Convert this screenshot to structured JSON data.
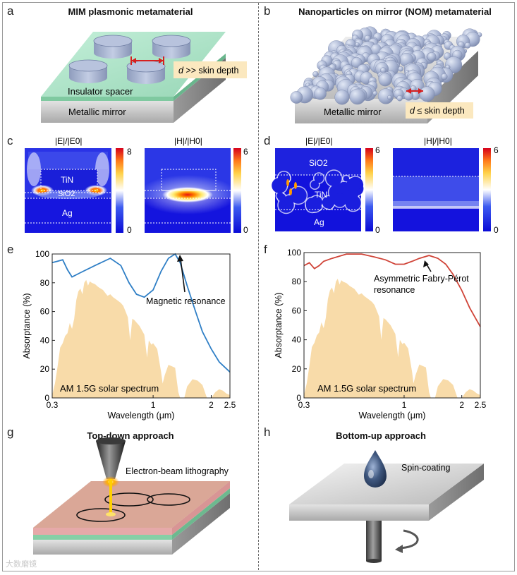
{
  "panels": {
    "a": {
      "letter": "a",
      "title": "MIM plasmonic metamaterial",
      "spacer_label": "Insulator spacer",
      "mirror_label": "Metallic mirror",
      "skin_note_italic": "d",
      "skin_note_rest": " >> skin depth"
    },
    "b": {
      "letter": "b",
      "title": "Nanoparticles on mirror (NOM) metamaterial",
      "mirror_label": "Metallic mirror",
      "skin_note_italic": "d",
      "skin_note_rest": " ≤ skin depth"
    },
    "c": {
      "letter": "c",
      "map_e_title": "|E|/|E0|",
      "map_h_title": "|H|/|H0|",
      "layer_tin": "TiN",
      "layer_sio2": "SiO2",
      "layer_ag": "Ag",
      "cbar_e_max": "8",
      "cbar_e_min": "0",
      "cbar_h_max": "6",
      "cbar_h_min": "0"
    },
    "d": {
      "letter": "d",
      "map_e_title": "|E|/|E0|",
      "map_h_title": "|H|/|H0|",
      "layer_sio2": "SiO2",
      "layer_tin": "TiN",
      "layer_ag": "Ag",
      "cbar_e_max": "6",
      "cbar_e_min": "0",
      "cbar_h_max": "6",
      "cbar_h_min": "0"
    },
    "e": {
      "letter": "e",
      "annotation": "Magnetic resonance",
      "spectrum_label": "AM 1.5G solar spectrum"
    },
    "f": {
      "letter": "f",
      "annotation_line1": "Asymmetric Fabry-Pérot",
      "annotation_line2": "resonance",
      "spectrum_label": "AM 1.5G solar spectrum"
    },
    "g": {
      "letter": "g",
      "title": "Top-down approach",
      "tool_label": "Electron-beam lithography"
    },
    "h": {
      "letter": "h",
      "title": "Bottom-up approach",
      "tool_label": "Spin-coating"
    }
  },
  "watermark": "大数磨镜",
  "colors": {
    "absorptance_e": "#2f7fc6",
    "absorptance_f": "#d04438",
    "solar": "#f8dba9",
    "spacer_green": "#9fdcbf",
    "particle": "#a9b5d3",
    "label_box": "#fbe8bf"
  },
  "chart_data": [
    {
      "type": "line",
      "panel": "e",
      "xscale": "log",
      "xlabel": "Wavelength (μm)",
      "ylabel": "Absorptance (%)",
      "xlim": [
        0.3,
        2.5
      ],
      "ylim": [
        0,
        100
      ],
      "xticks": [
        0.3,
        1,
        2,
        2.5
      ],
      "xtick_labels": [
        "0.3",
        "1",
        "2",
        "2.5"
      ],
      "yticks": [
        0,
        20,
        40,
        60,
        80,
        100
      ],
      "ytick_labels": [
        "0",
        "20",
        "40",
        "60",
        "80",
        "100"
      ],
      "series": [
        {
          "name": "Absorptance",
          "x": [
            0.3,
            0.32,
            0.34,
            0.36,
            0.38,
            0.42,
            0.5,
            0.6,
            0.68,
            0.75,
            0.82,
            0.9,
            1.0,
            1.1,
            1.2,
            1.3,
            1.38,
            1.5,
            1.65,
            1.8,
            2.0,
            2.2,
            2.5
          ],
          "values": [
            94,
            95,
            96,
            89,
            84,
            87,
            92,
            97,
            92,
            80,
            72,
            70,
            75,
            88,
            97,
            100,
            94,
            78,
            61,
            46,
            34,
            25,
            18
          ]
        },
        {
          "name": "AM 1.5G solar spectrum",
          "x": [
            0.3,
            0.31,
            0.32,
            0.33,
            0.34,
            0.35,
            0.36,
            0.37,
            0.38,
            0.39,
            0.4,
            0.41,
            0.42,
            0.43,
            0.44,
            0.45,
            0.46,
            0.47,
            0.48,
            0.5,
            0.52,
            0.55,
            0.58,
            0.6,
            0.62,
            0.65,
            0.68,
            0.7,
            0.72,
            0.74,
            0.76,
            0.78,
            0.8,
            0.85,
            0.9,
            0.93,
            0.95,
            0.98,
            1.0,
            1.05,
            1.1,
            1.12,
            1.15,
            1.2,
            1.25,
            1.3,
            1.35,
            1.38,
            1.45,
            1.5,
            1.6,
            1.7,
            1.8,
            1.9,
            2.0,
            2.1,
            2.2,
            2.3,
            2.4,
            2.5
          ],
          "values": [
            2,
            10,
            22,
            35,
            38,
            43,
            45,
            52,
            48,
            55,
            68,
            74,
            76,
            72,
            80,
            82,
            78,
            81,
            80,
            79,
            77,
            75,
            71,
            72,
            70,
            68,
            66,
            64,
            60,
            56,
            40,
            55,
            54,
            50,
            44,
            28,
            40,
            37,
            38,
            34,
            18,
            10,
            16,
            23,
            22,
            21,
            4,
            0,
            0,
            8,
            13,
            12,
            9,
            0,
            0,
            4,
            6,
            5,
            3,
            2
          ]
        }
      ]
    },
    {
      "type": "line",
      "panel": "f",
      "xscale": "log",
      "xlabel": "Wavelength (μm)",
      "ylabel": "Absorptance (%)",
      "xlim": [
        0.3,
        2.5
      ],
      "ylim": [
        0,
        100
      ],
      "xticks": [
        0.3,
        1,
        2,
        2.5
      ],
      "xtick_labels": [
        "0.3",
        "1",
        "2",
        "2.5"
      ],
      "yticks": [
        0,
        20,
        40,
        60,
        80,
        100
      ],
      "ytick_labels": [
        "0",
        "20",
        "40",
        "60",
        "80",
        "100"
      ],
      "series": [
        {
          "name": "Absorptance",
          "x": [
            0.3,
            0.32,
            0.34,
            0.36,
            0.38,
            0.42,
            0.5,
            0.6,
            0.7,
            0.8,
            0.9,
            1.0,
            1.1,
            1.2,
            1.35,
            1.5,
            1.65,
            1.8,
            2.0,
            2.2,
            2.5
          ],
          "values": [
            91,
            93,
            89,
            91,
            94,
            96,
            99,
            99,
            97,
            95,
            92,
            92,
            94,
            96,
            98,
            96,
            92,
            85,
            74,
            62,
            49
          ]
        },
        {
          "name": "AM 1.5G solar spectrum",
          "x": [
            0.3,
            0.31,
            0.32,
            0.33,
            0.34,
            0.35,
            0.36,
            0.37,
            0.38,
            0.39,
            0.4,
            0.41,
            0.42,
            0.43,
            0.44,
            0.45,
            0.46,
            0.47,
            0.48,
            0.5,
            0.52,
            0.55,
            0.58,
            0.6,
            0.62,
            0.65,
            0.68,
            0.7,
            0.72,
            0.74,
            0.76,
            0.78,
            0.8,
            0.85,
            0.9,
            0.93,
            0.95,
            0.98,
            1.0,
            1.05,
            1.1,
            1.12,
            1.15,
            1.2,
            1.25,
            1.3,
            1.35,
            1.38,
            1.45,
            1.5,
            1.6,
            1.7,
            1.8,
            1.9,
            2.0,
            2.1,
            2.2,
            2.3,
            2.4,
            2.5
          ],
          "values": [
            2,
            10,
            22,
            35,
            38,
            43,
            45,
            52,
            48,
            55,
            68,
            74,
            76,
            72,
            80,
            82,
            78,
            81,
            80,
            79,
            77,
            75,
            71,
            72,
            70,
            68,
            66,
            64,
            60,
            56,
            40,
            55,
            54,
            50,
            44,
            28,
            40,
            37,
            38,
            34,
            18,
            10,
            16,
            23,
            22,
            21,
            4,
            0,
            0,
            8,
            13,
            12,
            9,
            0,
            0,
            4,
            6,
            5,
            3,
            2
          ]
        }
      ]
    }
  ]
}
